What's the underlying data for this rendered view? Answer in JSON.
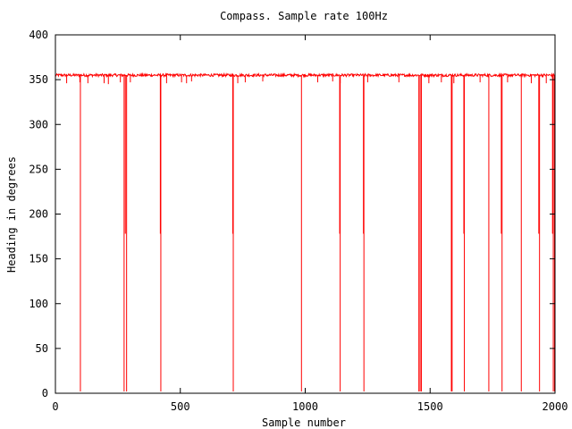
{
  "chart_data": {
    "type": "line",
    "title": "Compass. Sample rate 100Hz",
    "xlabel": "Sample number",
    "ylabel": "Heading in degrees",
    "xlim": [
      0,
      2000
    ],
    "ylim": [
      0,
      400
    ],
    "xticks": [
      0,
      500,
      1000,
      1500,
      2000
    ],
    "yticks": [
      0,
      50,
      100,
      150,
      200,
      250,
      300,
      350,
      400
    ],
    "grid": false,
    "legend": "none",
    "series": [
      {
        "color": "#ff0000",
        "baseline": 355,
        "noise_amplitude": 3,
        "small_dips": [
          {
            "x": 45,
            "y": 346
          },
          {
            "x": 98,
            "y": 347
          },
          {
            "x": 130,
            "y": 346
          },
          {
            "x": 195,
            "y": 346
          },
          {
            "x": 212,
            "y": 345
          },
          {
            "x": 260,
            "y": 347
          },
          {
            "x": 300,
            "y": 347
          },
          {
            "x": 445,
            "y": 346
          },
          {
            "x": 505,
            "y": 347
          },
          {
            "x": 525,
            "y": 346
          },
          {
            "x": 545,
            "y": 348
          },
          {
            "x": 730,
            "y": 346
          },
          {
            "x": 760,
            "y": 347
          },
          {
            "x": 830,
            "y": 348
          },
          {
            "x": 1050,
            "y": 347
          },
          {
            "x": 1110,
            "y": 348
          },
          {
            "x": 1140,
            "y": 346
          },
          {
            "x": 1250,
            "y": 347
          },
          {
            "x": 1375,
            "y": 347
          },
          {
            "x": 1495,
            "y": 346
          },
          {
            "x": 1545,
            "y": 347
          },
          {
            "x": 1595,
            "y": 346
          },
          {
            "x": 1700,
            "y": 347
          },
          {
            "x": 1810,
            "y": 347
          },
          {
            "x": 1905,
            "y": 346
          },
          {
            "x": 1965,
            "y": 346
          }
        ],
        "spikes": [
          {
            "x": 100,
            "y": 2
          },
          {
            "x": 275,
            "y": 2
          },
          {
            "x": 280,
            "y": 178
          },
          {
            "x": 285,
            "y": 2
          },
          {
            "x": 420,
            "y": 178
          },
          {
            "x": 422,
            "y": 2
          },
          {
            "x": 710,
            "y": 178
          },
          {
            "x": 712,
            "y": 2
          },
          {
            "x": 985,
            "y": 2
          },
          {
            "x": 1138,
            "y": 178
          },
          {
            "x": 1140,
            "y": 2
          },
          {
            "x": 1233,
            "y": 178
          },
          {
            "x": 1235,
            "y": 2
          },
          {
            "x": 1455,
            "y": 2
          },
          {
            "x": 1460,
            "y": 2
          },
          {
            "x": 1465,
            "y": 2
          },
          {
            "x": 1585,
            "y": 2
          },
          {
            "x": 1588,
            "y": 2
          },
          {
            "x": 1635,
            "y": 178
          },
          {
            "x": 1637,
            "y": 2
          },
          {
            "x": 1735,
            "y": 2
          },
          {
            "x": 1785,
            "y": 178
          },
          {
            "x": 1788,
            "y": 2
          },
          {
            "x": 1865,
            "y": 2
          },
          {
            "x": 1935,
            "y": 178
          },
          {
            "x": 1938,
            "y": 2
          },
          {
            "x": 1990,
            "y": 178
          },
          {
            "x": 1993,
            "y": 2
          },
          {
            "x": 1998,
            "y": 2
          }
        ]
      }
    ]
  }
}
